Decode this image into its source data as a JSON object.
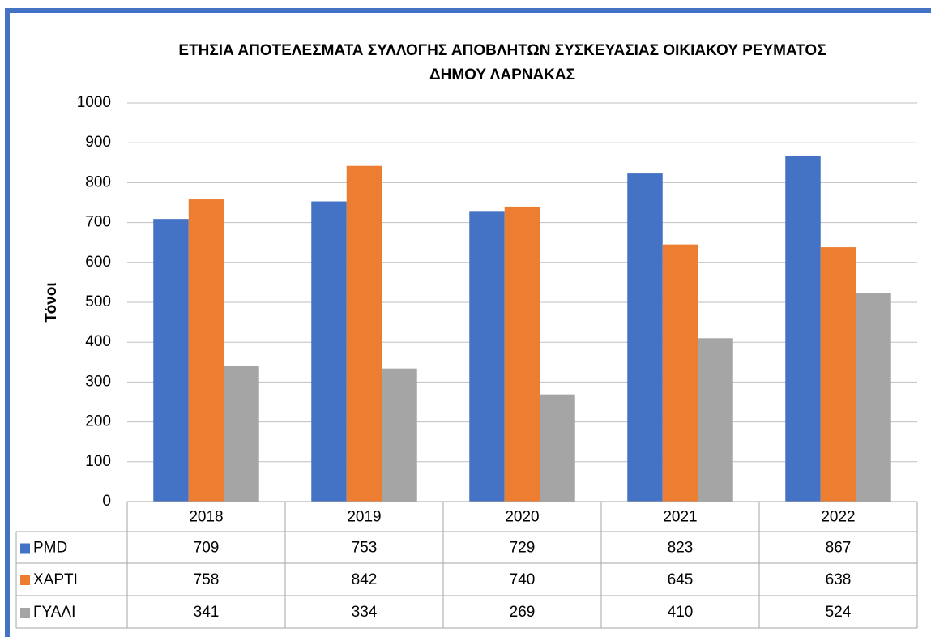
{
  "chart_data": {
    "type": "bar",
    "title": [
      "ΕΤΗΣΙΑ ΑΠΟΤΕΛΕΣΜΑΤΑ ΣΥΛΛΟΓΗΣ ΑΠΟΒΛΗΤΩΝ ΣΥΣΚΕΥΑΣΙΑΣ ΟΙΚΙΑΚΟΥ ΡΕΥΜΑΤΟΣ",
      "ΔΗΜΟΥ ΛΑΡΝΑΚΑΣ"
    ],
    "y_label": "Τόνοι",
    "categories": [
      "2018",
      "2019",
      "2020",
      "2021",
      "2022"
    ],
    "series": [
      {
        "name": "PMD",
        "color": "#4472c4",
        "values": [
          709,
          753,
          729,
          823,
          867
        ]
      },
      {
        "name": "ΧΑΡΤΙ",
        "color": "#ed7d31",
        "values": [
          758,
          842,
          740,
          645,
          638
        ]
      },
      {
        "name": "ΓΥΑΛΙ",
        "color": "#a5a5a5",
        "values": [
          341,
          334,
          269,
          410,
          524
        ]
      }
    ],
    "ylim": [
      0,
      1000
    ],
    "yticks": [
      0,
      100,
      200,
      300,
      400,
      500,
      600,
      700,
      800,
      900,
      1000
    ],
    "grid": true,
    "data_table": true
  }
}
